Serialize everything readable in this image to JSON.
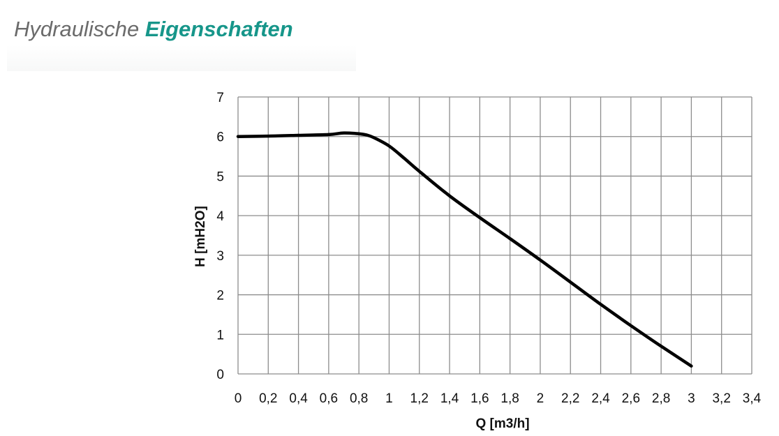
{
  "header": {
    "title_light": "Hydraulische",
    "title_bold": "Eigenschaften",
    "accent_color": "#17968a"
  },
  "chart_data": {
    "type": "line",
    "title": "",
    "xlabel": "Q [m3/h]",
    "ylabel": "H [mH2O]",
    "xlim": [
      0,
      3.4
    ],
    "ylim": [
      0,
      7
    ],
    "grid": true,
    "x_ticks": [
      0,
      0.2,
      0.4,
      0.6,
      0.8,
      1,
      1.2,
      1.4,
      1.6,
      1.8,
      2,
      2.2,
      2.4,
      2.6,
      2.8,
      3,
      3.2,
      3.4
    ],
    "x_tick_labels": [
      "0",
      "0,2",
      "0,4",
      "0,6",
      "0,8",
      "1",
      "1,2",
      "1,4",
      "1,6",
      "1,8",
      "2",
      "2,2",
      "2,4",
      "2,6",
      "2,8",
      "3",
      "3,2",
      "3,4"
    ],
    "y_ticks": [
      0,
      1,
      2,
      3,
      4,
      5,
      6,
      7
    ],
    "y_tick_labels": [
      "0",
      "1",
      "2",
      "3",
      "4",
      "5",
      "6",
      "7"
    ],
    "series": [
      {
        "color": "#000000",
        "x": [
          0,
          0.2,
          0.4,
          0.6,
          0.7,
          0.8,
          0.85,
          0.9,
          1.0,
          1.1,
          1.2,
          1.4,
          1.6,
          1.8,
          2.0,
          2.2,
          2.4,
          2.6,
          2.8,
          3.0
        ],
        "y": [
          6.0,
          6.01,
          6.03,
          6.05,
          6.09,
          6.07,
          6.04,
          5.97,
          5.76,
          5.45,
          5.12,
          4.5,
          3.95,
          3.42,
          2.88,
          2.32,
          1.76,
          1.22,
          0.7,
          0.2
        ]
      }
    ]
  }
}
